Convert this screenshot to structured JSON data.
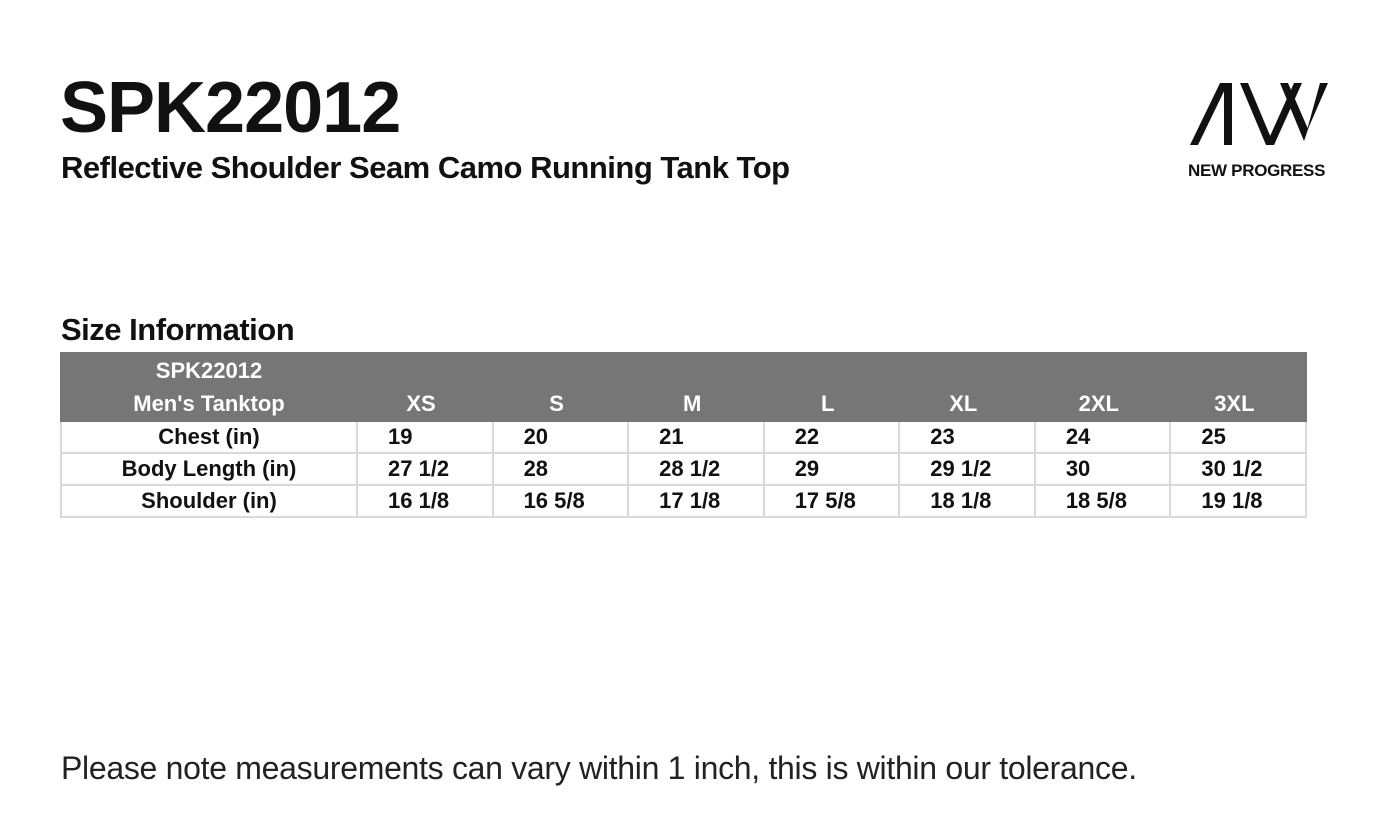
{
  "header": {
    "product_code": "SPK22012",
    "product_name": "Reflective Shoulder Seam Camo Running Tank Top"
  },
  "brand": {
    "logo_icon": "aw-logo-icon",
    "name": "NEW PROGRESS"
  },
  "section": {
    "title": "Size Information"
  },
  "table": {
    "header_line1": "SPK22012",
    "header_line2": "Men's Tanktop",
    "sizes": [
      "XS",
      "S",
      "M",
      "L",
      "XL",
      "2XL",
      "3XL"
    ],
    "rows": [
      {
        "label": "Chest (in)",
        "values": [
          "19",
          "20",
          "21",
          "22",
          "23",
          "24",
          "25"
        ]
      },
      {
        "label": "Body Length (in)",
        "values": [
          "27 1/2",
          "28",
          "28 1/2",
          "29",
          "29 1/2",
          "30",
          "30 1/2"
        ]
      },
      {
        "label": "Shoulder (in)",
        "values": [
          "16 1/8",
          "16 5/8",
          "17 1/8",
          "17 5/8",
          "18 1/8",
          "18 5/8",
          "19 1/8"
        ]
      }
    ],
    "header_bg": "#767676",
    "border_color": "#d9d9d9"
  },
  "footer": {
    "note": "Please note measurements can vary within 1 inch, this is within our tolerance."
  }
}
